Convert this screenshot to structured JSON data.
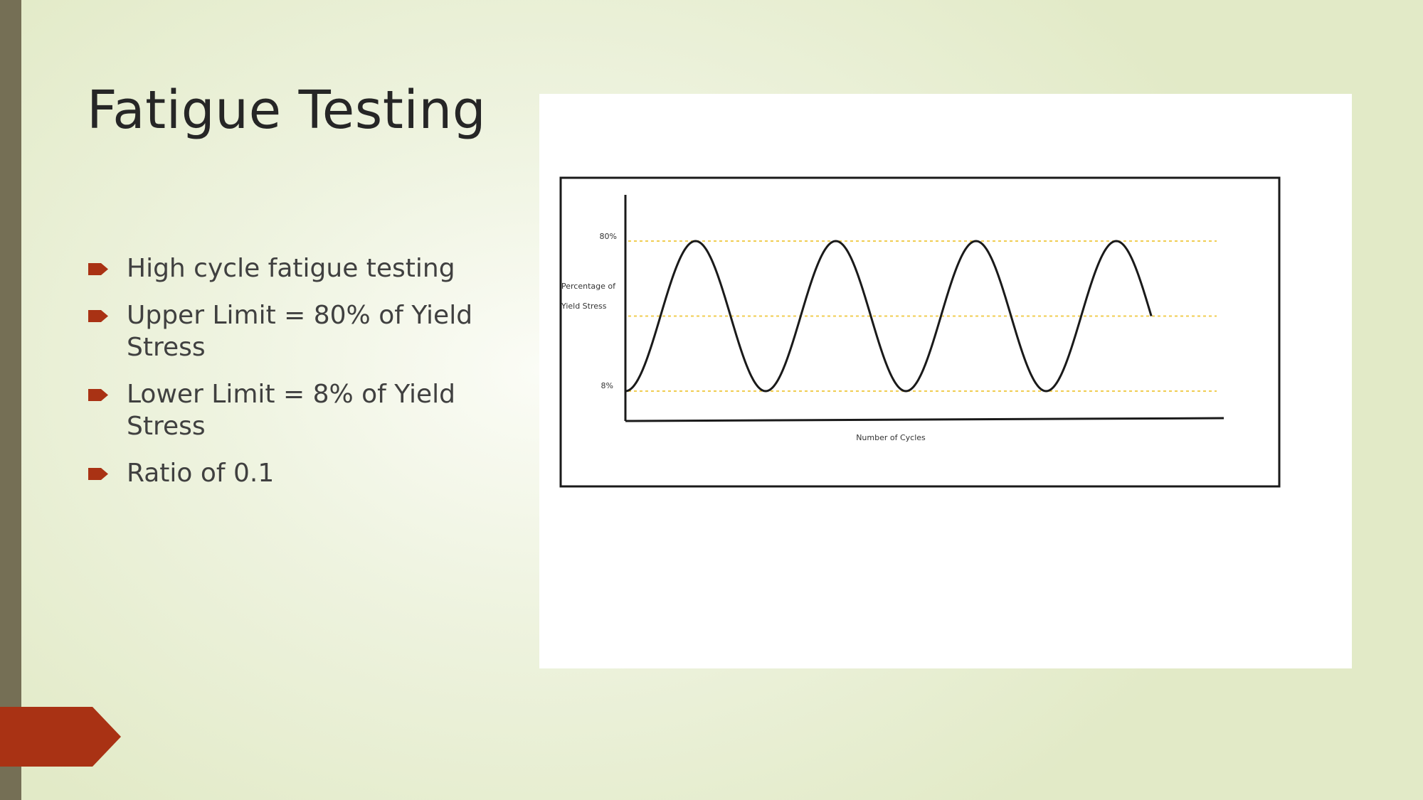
{
  "slide": {
    "title": "Fatigue Testing",
    "bullets": [
      "High cycle fatigue testing",
      "Upper Limit = 80% of Yield Stress",
      "Lower Limit = 8% of Yield Stress",
      "Ratio of 0.1"
    ]
  },
  "colors": {
    "accent": "#a93214",
    "side_bar": "#756f55",
    "title_text": "#262626",
    "body_text": "#404040",
    "guide_lines": "#f0cd52"
  },
  "icons": {
    "bullet": "right-pointing-arrow-icon",
    "corner_tab": "chevron-arrow-icon"
  },
  "chart_data": {
    "type": "line",
    "title": "",
    "xlabel": "Number of Cycles",
    "ylabel": "Percentage of Yield Stress",
    "ylabel_lines": [
      "Percentage of",
      "Yield Stress"
    ],
    "ytick_labels": [
      "80%",
      "8%"
    ],
    "ylim": [
      0,
      100
    ],
    "xlim": [
      0,
      3.8
    ],
    "guide_lines": [
      80,
      44,
      8
    ],
    "series": [
      {
        "waveform": "sine",
        "max": 80,
        "min": 8,
        "mean": 44,
        "cycles": 3.75,
        "start": 8
      }
    ],
    "grid": false,
    "legend": "none"
  }
}
